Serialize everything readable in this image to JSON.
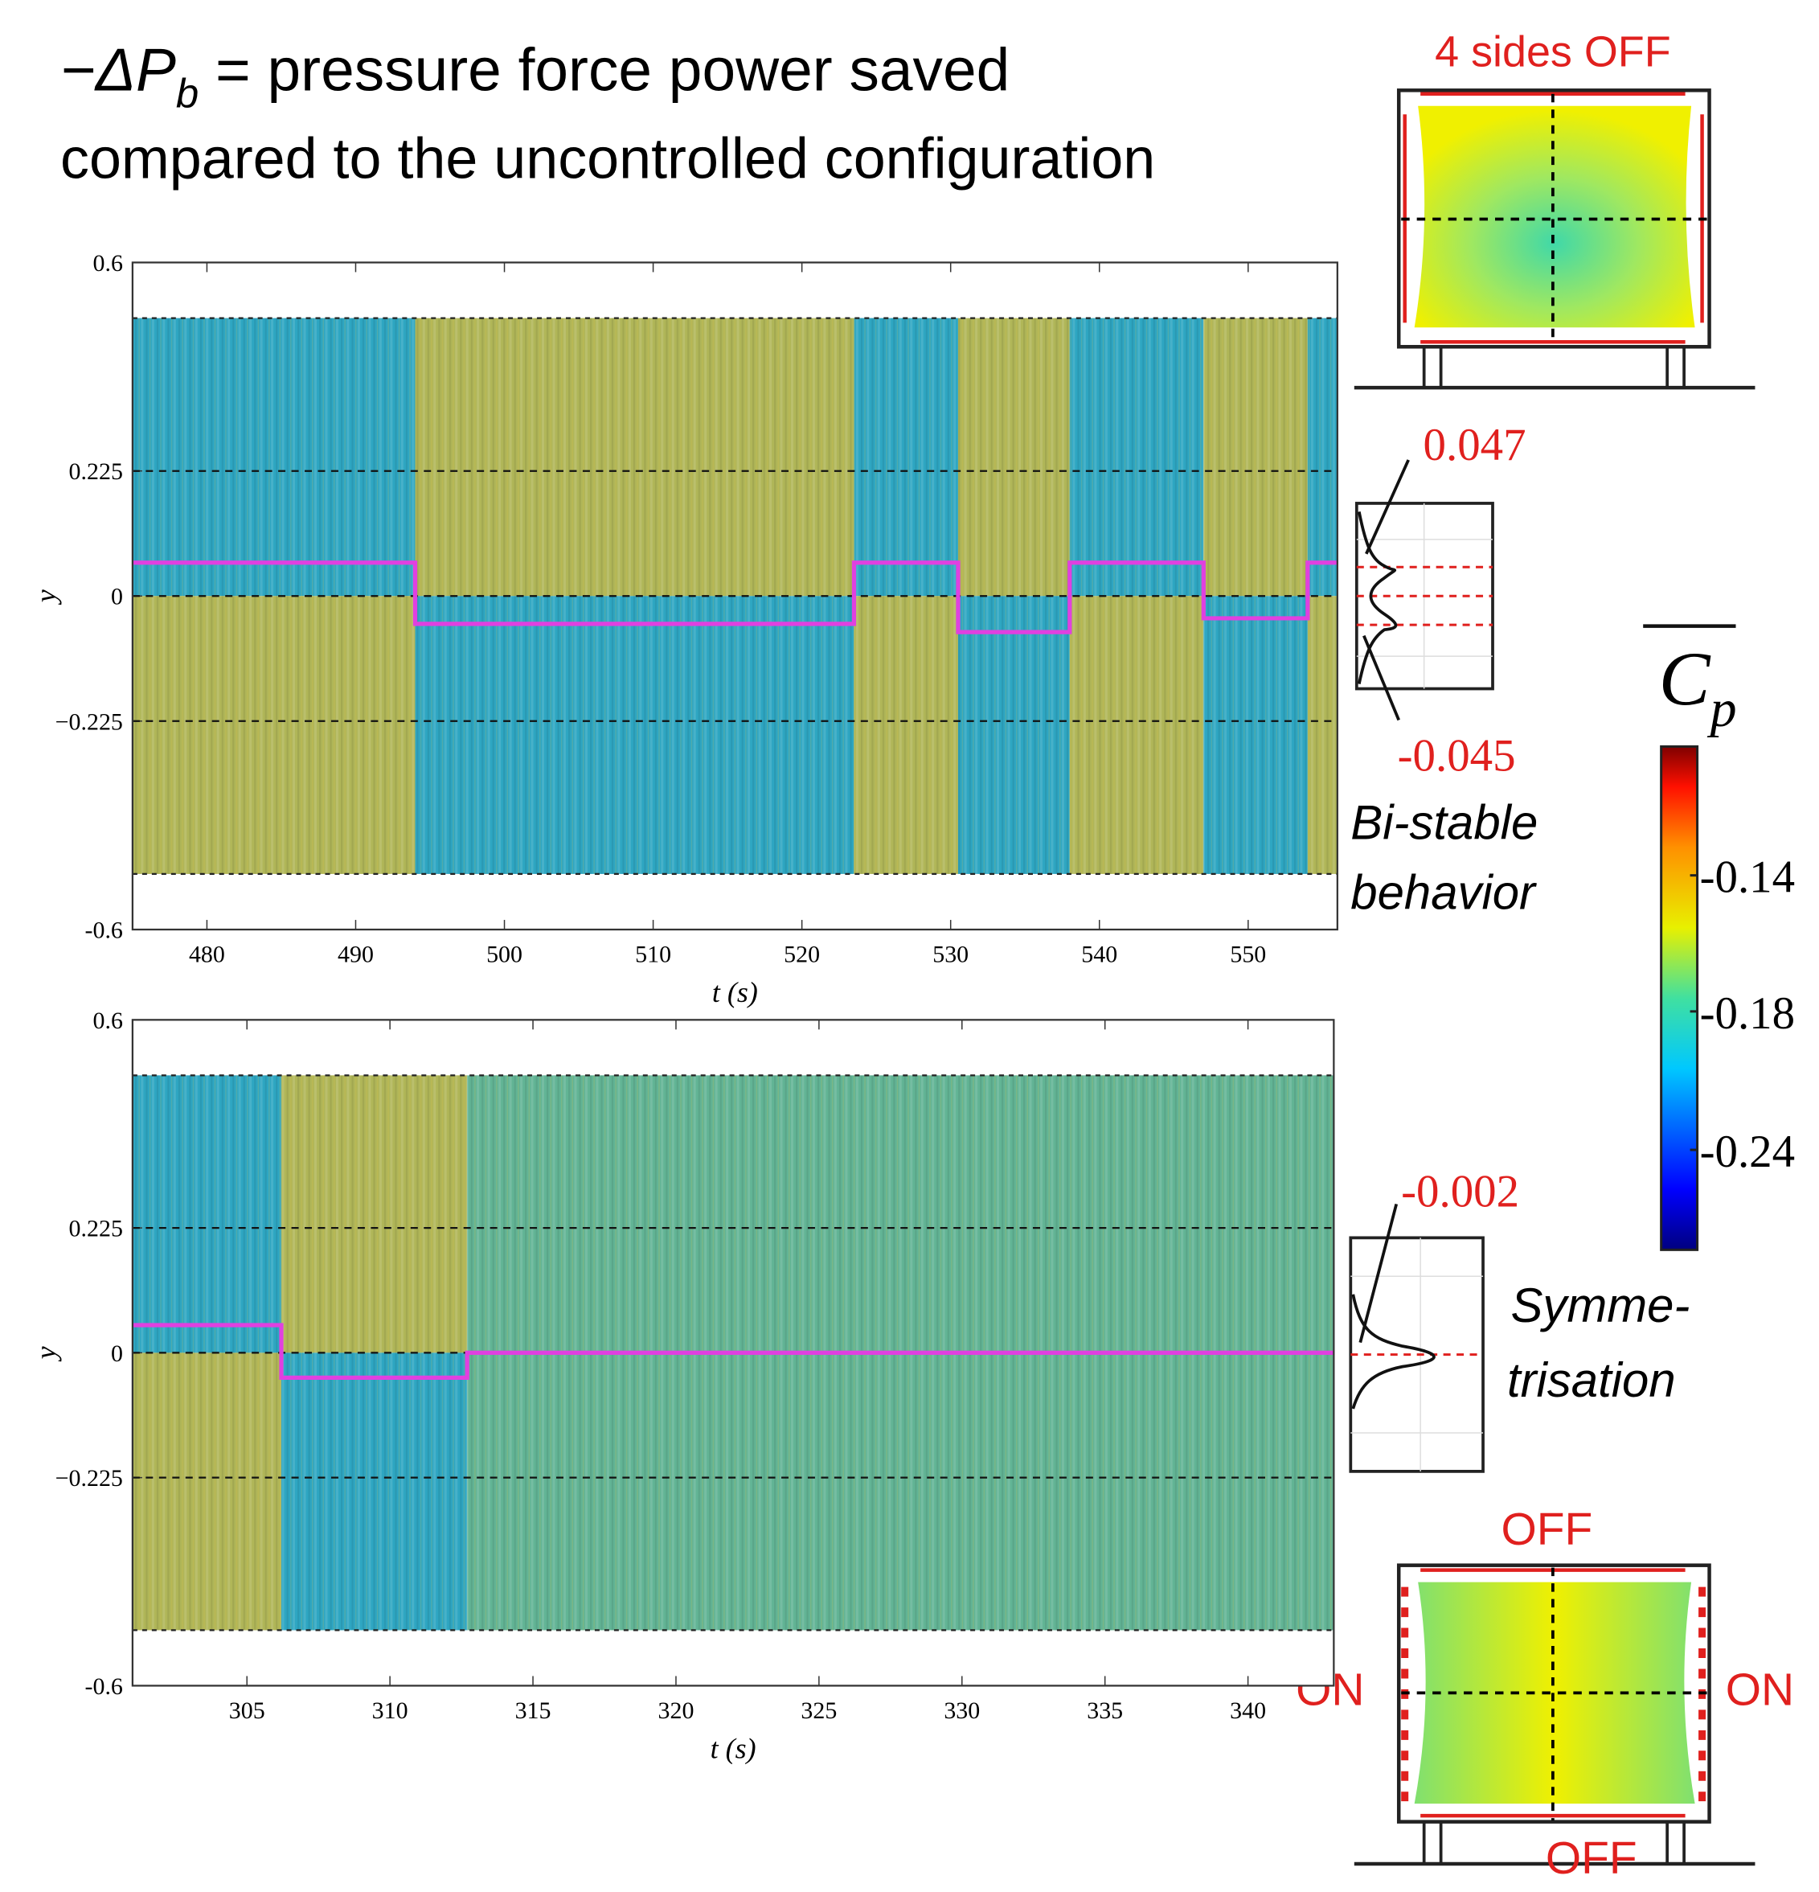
{
  "header": {
    "lead": "−ΔP",
    "lead_subscript": "b",
    "line1_rest": " = pressure force power saved",
    "line2": "compared to the uncontrolled configuration"
  },
  "chart_data": [
    {
      "type": "line",
      "x": [
        475,
        494,
        494,
        523.5,
        523.5,
        530.5,
        530.5,
        538,
        538,
        547,
        547,
        554,
        554,
        556
      ],
      "values": [
        0.06,
        0.06,
        -0.05,
        -0.05,
        0.06,
        0.06,
        -0.065,
        -0.065,
        0.06,
        0.06,
        -0.04,
        -0.04,
        0.06,
        0.06
      ],
      "color": "#e040e0",
      "xlim": [
        475,
        556
      ],
      "ylim": [
        -0.6,
        0.6
      ],
      "xticks": [
        480,
        490,
        500,
        510,
        520,
        530,
        540,
        550
      ],
      "yticks": [
        -0.6,
        {
          "value": -0.225,
          "label": "−0.225"
        },
        0,
        0.225,
        0.6
      ],
      "hlines": [
        -0.5,
        0.5
      ],
      "x_label": "t (s)",
      "y_label": "y",
      "grid": true
    },
    {
      "type": "line",
      "x": [
        301,
        306.2,
        306.2,
        312.7,
        312.7,
        343
      ],
      "values": [
        0.05,
        0.05,
        -0.045,
        -0.045,
        0,
        0
      ],
      "color": "#e040e0",
      "xlim": [
        301,
        343
      ],
      "ylim": [
        -0.6,
        0.6
      ],
      "xticks": [
        305,
        310,
        315,
        320,
        325,
        330,
        335,
        340
      ],
      "yticks": [
        -0.6,
        {
          "value": -0.225,
          "label": "−0.225"
        },
        0,
        0.225,
        0.6
      ],
      "hlines": [
        -0.5,
        0.5
      ],
      "x_label": "t (s)",
      "y_label": "y",
      "grid": true
    }
  ],
  "top_inset": {
    "title": "4 sides OFF"
  },
  "bistable": {
    "upper": 0.047,
    "lower": -0.045,
    "caption1": "Bi-stable",
    "caption2": "behavior"
  },
  "symmetric": {
    "peak": -0.002,
    "caption1": "Symme-",
    "caption2": "trisation"
  },
  "colorbar": {
    "title": "C",
    "subscript": "p",
    "ticks": [
      -0.14,
      -0.18,
      -0.24
    ]
  },
  "bottom_inset": {
    "top": "OFF",
    "left": "ON",
    "right": "ON",
    "bottom": "OFF"
  }
}
